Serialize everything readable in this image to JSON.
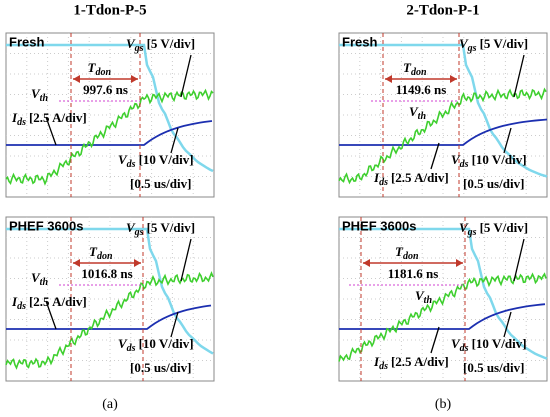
{
  "titles": [
    "1-Tdon-P-5",
    "2-Tdon-P-1"
  ],
  "captions": [
    "(a)",
    "(b)"
  ],
  "panels": [
    {
      "label": "Fresh",
      "tdon": {
        "symbol": "T",
        "sub": "don"
      },
      "delay": "997.6 ns",
      "vgs": {
        "symbol": "V",
        "sub": "gs",
        "scale": "[5 V/div]"
      },
      "vth": {
        "symbol": "V",
        "sub": "th"
      },
      "ids": {
        "symbol": "I",
        "sub": "ds",
        "scale": "[2.5 A/div]"
      },
      "vds": {
        "symbol": "V",
        "sub": "ds",
        "scale": "[10 V/div]"
      },
      "time": "[0.5 us/div]"
    },
    {
      "label": "Fresh",
      "tdon": {
        "symbol": "T",
        "sub": "don"
      },
      "delay": "1149.6 ns",
      "vgs": {
        "symbol": "V",
        "sub": "gs",
        "scale": "[5 V/div]"
      },
      "vth": {
        "symbol": "V",
        "sub": "th"
      },
      "ids": {
        "symbol": "I",
        "sub": "ds",
        "scale": "[2.5 A/div]"
      },
      "vds": {
        "symbol": "V",
        "sub": "ds",
        "scale": "[10 V/div]"
      },
      "time": "[0.5 us/div]"
    },
    {
      "label": "PHEF 3600s",
      "tdon": {
        "symbol": "T",
        "sub": "don"
      },
      "delay": "1016.8 ns",
      "vgs": {
        "symbol": "V",
        "sub": "gs",
        "scale": "[5 V/div]"
      },
      "vth": {
        "symbol": "V",
        "sub": "th"
      },
      "ids": {
        "symbol": "I",
        "sub": "ds",
        "scale": "[2.5 A/div]"
      },
      "vds": {
        "symbol": "V",
        "sub": "ds",
        "scale": "[10 V/div]"
      },
      "time": "[0.5 us/div]"
    },
    {
      "label": "PHEF 3600s",
      "tdon": {
        "symbol": "T",
        "sub": "don"
      },
      "delay": "1181.6 ns",
      "vgs": {
        "symbol": "V",
        "sub": "gs",
        "scale": "[5 V/div]"
      },
      "vth": {
        "symbol": "V",
        "sub": "th"
      },
      "ids": {
        "symbol": "I",
        "sub": "ds",
        "scale": "[2.5 A/div]"
      },
      "vds": {
        "symbol": "V",
        "sub": "ds",
        "scale": "[10 V/div]"
      },
      "time": "[0.5 us/div]"
    }
  ]
}
